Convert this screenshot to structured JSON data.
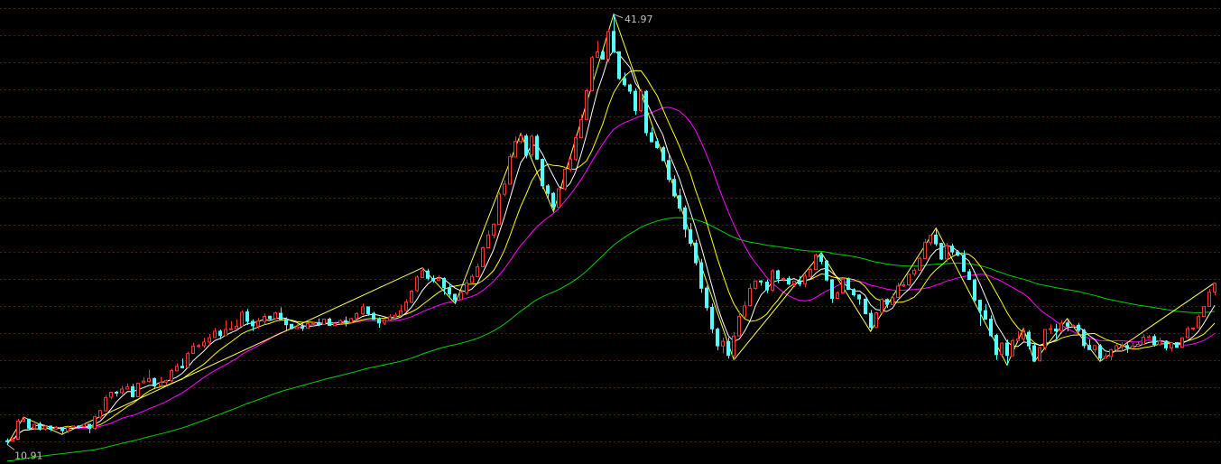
{
  "colors": {
    "background": "#000000",
    "grid": "#8b0000",
    "up": "#ff3232",
    "down": "#54ffff",
    "zigzag": "#ffff55",
    "ma_short": "#ffffff",
    "ma_mid": "#ffff00",
    "ma_long": "#ff00ff",
    "ma_longest": "#00d000",
    "label": "#c0c0c0"
  },
  "chart_data": {
    "type": "candlestick",
    "title": "",
    "xlabel": "",
    "ylabel": "",
    "grid": true,
    "ylim": [
      9.5,
      43.0
    ],
    "annotations": {
      "high_label": "41.97",
      "low_label": "10.91"
    },
    "candles": [
      [
        11.18,
        11.16,
        11.34,
        10.91
      ],
      [
        11.15,
        11.29,
        11.43,
        11.12
      ],
      [
        11.29,
        12.6,
        12.77,
        11.28
      ],
      [
        12.6,
        12.72,
        12.88,
        12.59
      ],
      [
        12.74,
        12.09,
        12.76,
        12.02
      ],
      [
        12.08,
        12.36,
        12.42,
        11.97
      ],
      [
        12.4,
        12.02,
        12.55,
        11.92
      ],
      [
        12.01,
        12.23,
        12.3,
        11.93
      ],
      [
        12.23,
        12.01,
        12.28,
        11.87
      ],
      [
        12.02,
        12.13,
        12.25,
        11.95
      ],
      [
        12.14,
        11.91,
        12.16,
        11.64
      ],
      [
        11.89,
        12.15,
        12.23,
        11.73
      ],
      [
        12.16,
        12.25,
        12.26,
        12.1
      ],
      [
        12.24,
        12.21,
        12.3,
        12.04
      ],
      [
        12.2,
        12.36,
        12.42,
        12.16
      ],
      [
        12.37,
        12.06,
        12.38,
        11.71
      ],
      [
        12.07,
        12.91,
        12.99,
        11.97
      ],
      [
        12.89,
        13.36,
        13.42,
        12.75
      ],
      [
        13.34,
        14.3,
        14.47,
        13.3
      ],
      [
        14.32,
        14.68,
        14.73,
        14.18
      ],
      [
        14.68,
        14.67,
        14.78,
        14.36
      ],
      [
        14.66,
        14.91,
        15.14,
        14.51
      ],
      [
        14.91,
        15.06,
        15.32,
        15.03
      ],
      [
        15.08,
        14.36,
        15.28,
        14.3
      ],
      [
        14.35,
        15.33,
        15.34,
        14.35
      ],
      [
        15.37,
        15.48,
        15.77,
        15.31
      ],
      [
        15.45,
        15.67,
        16.29,
        15.38
      ],
      [
        15.67,
        15.13,
        15.74,
        14.91
      ],
      [
        15.14,
        15.4,
        15.79,
        15.05
      ],
      [
        15.41,
        15.52,
        15.6,
        15.22
      ],
      [
        15.52,
        16.24,
        16.37,
        15.38
      ],
      [
        16.22,
        16.55,
        16.77,
        16.19
      ],
      [
        16.56,
        16.45,
        17.12,
        16.44
      ],
      [
        16.46,
        17.47,
        17.61,
        16.44
      ],
      [
        17.48,
        18.01,
        18.25,
        17.53
      ],
      [
        17.99,
        18.05,
        18.16,
        17.88
      ],
      [
        18.04,
        18.3,
        18.6,
        17.89
      ],
      [
        18.31,
        18.62,
        18.88,
        18.09
      ],
      [
        18.63,
        19.08,
        19.33,
        18.62
      ],
      [
        19.09,
        18.78,
        19.21,
        18.5
      ],
      [
        18.77,
        19.21,
        19.86,
        18.75
      ],
      [
        19.2,
        19.26,
        19.81,
        19.2
      ],
      [
        19.27,
        19.45,
        19.92,
        19.27
      ],
      [
        19.45,
        20.45,
        20.58,
        19.37
      ],
      [
        20.48,
        19.8,
        20.7,
        19.54
      ],
      [
        19.8,
        19.49,
        19.94,
        19.11
      ],
      [
        19.47,
        19.81,
        20.04,
        19.26
      ],
      [
        19.8,
        20.16,
        20.36,
        19.58
      ],
      [
        20.17,
        19.99,
        20.19,
        19.91
      ],
      [
        20.0,
        20.41,
        20.5,
        19.94
      ],
      [
        20.38,
        19.95,
        20.81,
        19.91
      ],
      [
        19.95,
        19.56,
        20.09,
        19.18
      ],
      [
        19.58,
        19.28,
        19.61,
        19.22
      ],
      [
        19.27,
        19.4,
        19.61,
        19.26
      ],
      [
        19.42,
        19.3,
        19.63,
        19.11
      ],
      [
        19.3,
        19.63,
        19.71,
        19.27
      ],
      [
        19.64,
        19.71,
        19.75,
        19.37
      ],
      [
        19.71,
        19.55,
        20.0,
        19.46
      ],
      [
        19.58,
        19.96,
        19.97,
        19.53
      ],
      [
        19.96,
        19.51,
        20.08,
        19.53
      ],
      [
        19.5,
        19.65,
        19.66,
        19.49
      ],
      [
        19.67,
        19.85,
        19.95,
        19.52
      ],
      [
        19.85,
        19.71,
        20.15,
        19.43
      ],
      [
        19.72,
        20.0,
        20.05,
        19.9
      ],
      [
        20.01,
        20.36,
        20.45,
        19.95
      ],
      [
        20.34,
        20.84,
        21.09,
        20.25
      ],
      [
        20.85,
        20.36,
        20.87,
        20.21
      ],
      [
        20.37,
        19.94,
        20.48,
        19.91
      ],
      [
        19.98,
        19.68,
        20.09,
        19.34
      ],
      [
        19.67,
        19.91,
        19.95,
        19.53
      ],
      [
        19.92,
        20.12,
        20.31,
        19.85
      ],
      [
        20.12,
        20.24,
        20.42,
        20.11
      ],
      [
        20.22,
        20.56,
        21.01,
        20.23
      ],
      [
        20.57,
        21.19,
        21.41,
        20.5
      ],
      [
        21.17,
        21.98,
        22.05,
        21.11
      ],
      [
        22.02,
        22.99,
        23.12,
        21.93
      ],
      [
        22.96,
        23.45,
        23.66,
        22.96
      ],
      [
        23.43,
        22.91,
        23.6,
        22.76
      ],
      [
        22.9,
        22.73,
        23.13,
        22.59
      ],
      [
        22.75,
        22.88,
        23.13,
        22.81
      ],
      [
        22.9,
        22.22,
        22.98,
        21.72
      ],
      [
        22.19,
        21.77,
        22.55,
        21.59
      ],
      [
        21.75,
        21.35,
        21.79,
        21.08
      ],
      [
        21.37,
        21.88,
        21.97,
        21.34
      ],
      [
        21.87,
        22.57,
        22.82,
        21.7
      ],
      [
        22.6,
        23.05,
        23.2,
        22.49
      ],
      [
        23.04,
        23.73,
        23.98,
        23.05
      ],
      [
        23.74,
        25.12,
        25.19,
        23.71
      ],
      [
        25.11,
        26.04,
        26.36,
        25.11
      ],
      [
        26.03,
        26.82,
        26.89,
        25.78
      ],
      [
        26.81,
        28.98,
        29.13,
        26.8
      ],
      [
        28.98,
        29.71,
        29.99,
        28.82
      ],
      [
        29.7,
        31.68,
        31.9,
        29.71
      ],
      [
        31.67,
        32.79,
        33.14,
        31.67
      ],
      [
        32.78,
        33.2,
        33.36,
        32.63
      ],
      [
        33.18,
        31.8,
        33.33,
        31.56
      ],
      [
        31.82,
        33.16,
        33.28,
        31.64
      ],
      [
        33.16,
        31.52,
        33.31,
        31.46
      ],
      [
        31.49,
        29.59,
        31.56,
        29.35
      ],
      [
        29.58,
        29.04,
        29.71,
        28.69
      ],
      [
        29.04,
        28.03,
        29.13,
        27.72
      ],
      [
        28.04,
        29.38,
        29.38,
        28.07
      ],
      [
        29.37,
        30.78,
        30.94,
        29.26
      ],
      [
        30.78,
        31.51,
        31.72,
        30.59
      ],
      [
        31.51,
        33.06,
        33.29,
        31.37
      ],
      [
        33.06,
        34.37,
        34.74,
        33.0
      ],
      [
        34.38,
        36.45,
        36.59,
        34.34
      ],
      [
        36.44,
        38.84,
        38.97,
        36.4
      ],
      [
        38.85,
        39.25,
        40.06,
        38.83
      ],
      [
        39.23,
        38.73,
        39.38,
        38.72
      ],
      [
        38.74,
        40.72,
        40.9,
        38.53
      ],
      [
        40.73,
        39.29,
        41.97,
        39.16
      ],
      [
        39.26,
        37.33,
        39.3,
        37.23
      ],
      [
        37.33,
        36.89,
        37.76,
        36.75
      ],
      [
        36.87,
        36.42,
        36.96,
        36.22
      ],
      [
        36.41,
        35.02,
        36.63,
        34.71
      ],
      [
        35.03,
        36.41,
        36.58,
        34.89
      ],
      [
        36.4,
        33.42,
        36.48,
        33.19
      ],
      [
        33.41,
        32.76,
        33.79,
        32.74
      ],
      [
        32.78,
        32.35,
        33.03,
        32.26
      ],
      [
        32.34,
        31.41,
        32.46,
        31.46
      ],
      [
        31.41,
        30.05,
        31.82,
        29.85
      ],
      [
        30.05,
        28.86,
        30.33,
        28.73
      ],
      [
        28.87,
        27.98,
        29.37,
        27.73
      ],
      [
        27.99,
        26.45,
        28.17,
        25.85
      ],
      [
        26.42,
        25.43,
        26.88,
        25.23
      ],
      [
        25.45,
        24.03,
        25.69,
        23.83
      ],
      [
        24.02,
        22.19,
        24.31,
        21.86
      ],
      [
        22.2,
        20.79,
        22.37,
        20.56
      ],
      [
        20.81,
        19.26,
        21.09,
        18.93
      ],
      [
        19.23,
        18.03,
        19.35,
        17.72
      ],
      [
        18.02,
        18.36,
        18.62,
        17.49
      ],
      [
        18.33,
        17.34,
        18.64,
        17.1
      ],
      [
        17.32,
        18.74,
        19.03,
        17.02
      ],
      [
        18.74,
        20.16,
        20.53,
        18.79
      ],
      [
        20.13,
        20.92,
        21.25,
        20.02
      ],
      [
        20.93,
        22.18,
        22.51,
        21.06
      ],
      [
        22.18,
        22.71,
        22.76,
        22.09
      ],
      [
        22.72,
        22.65,
        22.77,
        22.37
      ],
      [
        22.63,
        22.06,
        22.81,
        21.83
      ],
      [
        22.06,
        23.44,
        23.56,
        21.92
      ],
      [
        23.45,
        22.88,
        23.54,
        22.56
      ],
      [
        22.87,
        22.9,
        22.97,
        22.69
      ],
      [
        22.89,
        22.51,
        23.07,
        22.42
      ],
      [
        22.5,
        22.69,
        22.71,
        22.27
      ],
      [
        22.69,
        22.51,
        23.07,
        22.33
      ],
      [
        22.51,
        23.06,
        23.23,
        22.26
      ],
      [
        23.06,
        23.54,
        23.65,
        22.98
      ],
      [
        23.53,
        24.58,
        24.7,
        23.51
      ],
      [
        24.57,
        24.14,
        24.76,
        23.92
      ],
      [
        24.14,
        22.79,
        24.23,
        22.69
      ],
      [
        22.8,
        21.46,
        22.84,
        21.13
      ],
      [
        21.46,
        21.85,
        21.97,
        21.58
      ],
      [
        21.84,
        22.84,
        22.98,
        21.81
      ],
      [
        22.85,
        22.11,
        22.96,
        22.14
      ],
      [
        22.1,
        21.72,
        22.19,
        21.59
      ],
      [
        21.7,
        21.41,
        21.75,
        21.0
      ],
      [
        21.4,
        20.36,
        21.46,
        20.3
      ],
      [
        20.37,
        19.37,
        20.62,
        19.08
      ],
      [
        19.36,
        20.42,
        20.48,
        19.32
      ],
      [
        20.44,
        21.38,
        21.47,
        20.33
      ],
      [
        21.38,
        21.03,
        21.46,
        20.76
      ],
      [
        21.02,
        21.5,
        21.79,
        21.04
      ],
      [
        21.52,
        22.35,
        22.59,
        21.55
      ],
      [
        22.36,
        22.44,
        22.65,
        22.27
      ],
      [
        22.44,
        23.2,
        23.22,
        22.32
      ],
      [
        23.21,
        23.49,
        23.62,
        23.04
      ],
      [
        23.49,
        24.34,
        24.48,
        23.47
      ],
      [
        24.33,
        25.49,
        25.74,
        24.3
      ],
      [
        25.47,
        26.0,
        26.03,
        25.27
      ],
      [
        26.03,
        25.4,
        26.54,
        25.24
      ],
      [
        25.42,
        24.29,
        25.47,
        24.23
      ],
      [
        24.3,
        25.25,
        25.47,
        24.08
      ],
      [
        25.23,
        24.81,
        25.41,
        24.58
      ],
      [
        24.82,
        24.58,
        24.93,
        24.49
      ],
      [
        24.58,
        23.41,
        24.93,
        23.36
      ],
      [
        23.38,
        22.82,
        23.58,
        22.8
      ],
      [
        22.79,
        21.34,
        22.89,
        21.23
      ],
      [
        21.32,
        20.57,
        21.35,
        19.48
      ],
      [
        20.57,
        19.95,
        21.05,
        19.97
      ],
      [
        19.96,
        18.77,
        20.23,
        18.67
      ],
      [
        18.78,
        17.4,
        18.91,
        17.02
      ],
      [
        17.41,
        18.23,
        18.29,
        17.33
      ],
      [
        18.24,
        17.34,
        18.48,
        16.64
      ],
      [
        17.31,
        18.41,
        18.53,
        17.32
      ],
      [
        18.41,
        18.52,
        19.08,
        18.39
      ],
      [
        18.53,
        19.02,
        19.28,
        18.35
      ],
      [
        19.01,
        18.03,
        19.15,
        17.78
      ],
      [
        18.04,
        16.93,
        18.26,
        16.89
      ],
      [
        16.95,
        17.9,
        17.97,
        16.91
      ],
      [
        17.91,
        19.21,
        19.22,
        17.72
      ],
      [
        19.21,
        19.27,
        19.58,
        18.87
      ],
      [
        19.25,
        19.11,
        19.62,
        18.56
      ],
      [
        19.1,
        19.67,
        19.88,
        19.03
      ],
      [
        19.68,
        19.45,
        19.99,
        19.08
      ],
      [
        19.43,
        19.51,
        19.56,
        19.36
      ],
      [
        19.52,
        19.15,
        19.68,
        19.0
      ],
      [
        19.15,
        18.05,
        19.25,
        17.85
      ],
      [
        18.06,
        17.76,
        18.49,
        17.75
      ],
      [
        17.75,
        18.05,
        18.06,
        17.53
      ],
      [
        18.04,
        17.14,
        18.16,
        16.91
      ],
      [
        17.13,
        17.27,
        17.51,
        17.21
      ],
      [
        17.26,
        17.76,
        17.83,
        17.0
      ],
      [
        17.74,
        18.04,
        18.16,
        17.64
      ],
      [
        18.03,
        18.03,
        18.28,
        17.64
      ],
      [
        18.05,
        17.88,
        18.26,
        17.52
      ],
      [
        17.86,
        18.02,
        18.24,
        17.87
      ],
      [
        18.01,
        18.14,
        18.33,
        17.94
      ],
      [
        18.14,
        18.66,
        18.86,
        18.11
      ],
      [
        18.65,
        18.68,
        18.81,
        18.67
      ],
      [
        18.7,
        18.12,
        18.86,
        17.97
      ],
      [
        18.12,
        18.38,
        18.64,
        18.06
      ],
      [
        18.37,
        17.88,
        18.43,
        17.7
      ],
      [
        17.87,
        18.25,
        18.31,
        17.63
      ],
      [
        18.27,
        17.92,
        18.3,
        17.94
      ],
      [
        17.94,
        18.62,
        18.63,
        17.9
      ],
      [
        18.63,
        19.27,
        19.42,
        18.63
      ],
      [
        19.26,
        19.32,
        19.37,
        19.16
      ],
      [
        19.33,
        20.13,
        20.28,
        19.37
      ],
      [
        20.15,
        20.86,
        20.89,
        20.13
      ],
      [
        20.87,
        21.9,
        22.14,
        20.86
      ],
      [
        21.92,
        22.55,
        22.59,
        21.67
      ]
    ]
  }
}
